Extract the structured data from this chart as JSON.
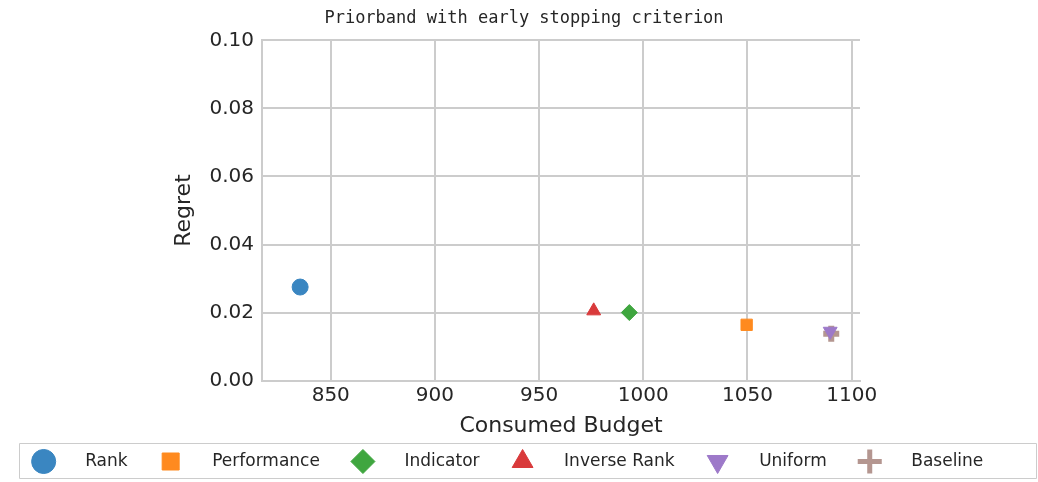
{
  "chart_data": {
    "type": "scatter",
    "title": "Priorband with early stopping criterion",
    "xlabel": "Consumed Budget",
    "ylabel": "Regret",
    "xlim": [
      817,
      1104
    ],
    "xticks": [
      850,
      900,
      950,
      1000,
      1050,
      1100
    ],
    "ylim": [
      0,
      0.1
    ],
    "yticks": [
      {
        "value": 0,
        "label": "0.00"
      },
      {
        "value": 0.02,
        "label": "0.02"
      },
      {
        "value": 0.04,
        "label": "0.04"
      },
      {
        "value": 0.06,
        "label": "0.06"
      },
      {
        "value": 0.08,
        "label": "0.08"
      },
      {
        "value": 0.1,
        "label": "0.10"
      }
    ],
    "grid": true,
    "legend": "bottom",
    "series": [
      {
        "name": "Rank",
        "color": "#3a86c1",
        "marker": "circle",
        "x": [
          835.3
        ],
        "values": [
          0.0275
        ]
      },
      {
        "name": "Performance",
        "color": "#ff8a1f",
        "marker": "square",
        "x": [
          1049.6
        ],
        "values": [
          0.0164
        ]
      },
      {
        "name": "Indicator",
        "color": "#3fa63f",
        "marker": "diamond",
        "x": [
          993.3
        ],
        "values": [
          0.02
        ]
      },
      {
        "name": "Inverse Rank",
        "color": "#d93a3b",
        "marker": "triangle",
        "x": [
          976.2
        ],
        "values": [
          0.0205
        ]
      },
      {
        "name": "Uniform",
        "color": "#9d79c9",
        "marker": "triangle-down",
        "x": [
          1089.7
        ],
        "values": [
          0.0145
        ]
      },
      {
        "name": "Baseline",
        "color": "#b49690",
        "marker": "plus",
        "x": [
          1090.2
        ],
        "values": [
          0.0138
        ]
      }
    ]
  }
}
